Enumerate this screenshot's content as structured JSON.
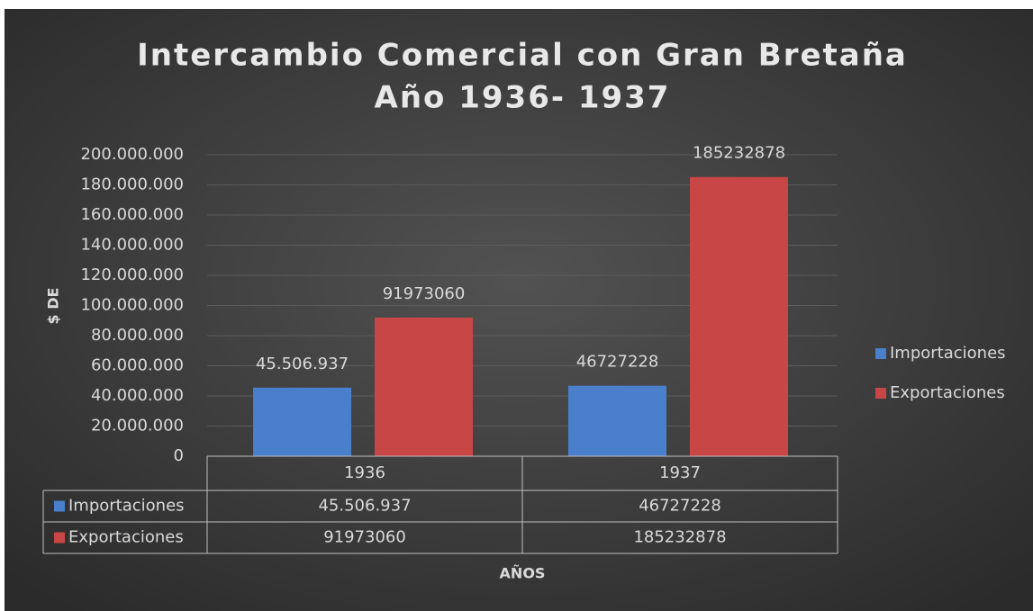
{
  "chart_data": {
    "type": "bar",
    "title": "Intercambio Comercial con Gran Bretaña",
    "subtitle": "Año 1936- 1937",
    "y_label": "$ DE",
    "x_label": "AÑOS",
    "categories": [
      "1936",
      "1937"
    ],
    "series": [
      {
        "name": "Importaciones",
        "color": "#4a7fcc",
        "values": [
          45506937,
          46727228
        ],
        "value_labels": [
          "45.506.937",
          "46727228"
        ]
      },
      {
        "name": "Exportaciones",
        "color": "#c94646",
        "values": [
          91973060,
          185232878
        ],
        "value_labels": [
          "91973060",
          "185232878"
        ]
      }
    ],
    "ylim": [
      0,
      200000000
    ],
    "yticks": [
      0,
      {
        "value": 20000000,
        "label": "20.000.000"
      },
      {
        "value": 40000000,
        "label": "40.000.000"
      },
      {
        "value": 60000000,
        "label": "60.000.000"
      },
      {
        "value": 80000000,
        "label": "80.000.000"
      },
      {
        "value": 100000000,
        "label": "100.000.000"
      },
      {
        "value": 120000000,
        "label": "120.000.000"
      },
      {
        "value": 140000000,
        "label": "140.000.000"
      },
      {
        "value": 160000000,
        "label": "160.000.000"
      },
      {
        "value": 180000000,
        "label": "180.000.000"
      },
      {
        "value": 200000000,
        "label": "200.000.000"
      }
    ],
    "grid": true,
    "legend": "right",
    "data_table": true
  }
}
